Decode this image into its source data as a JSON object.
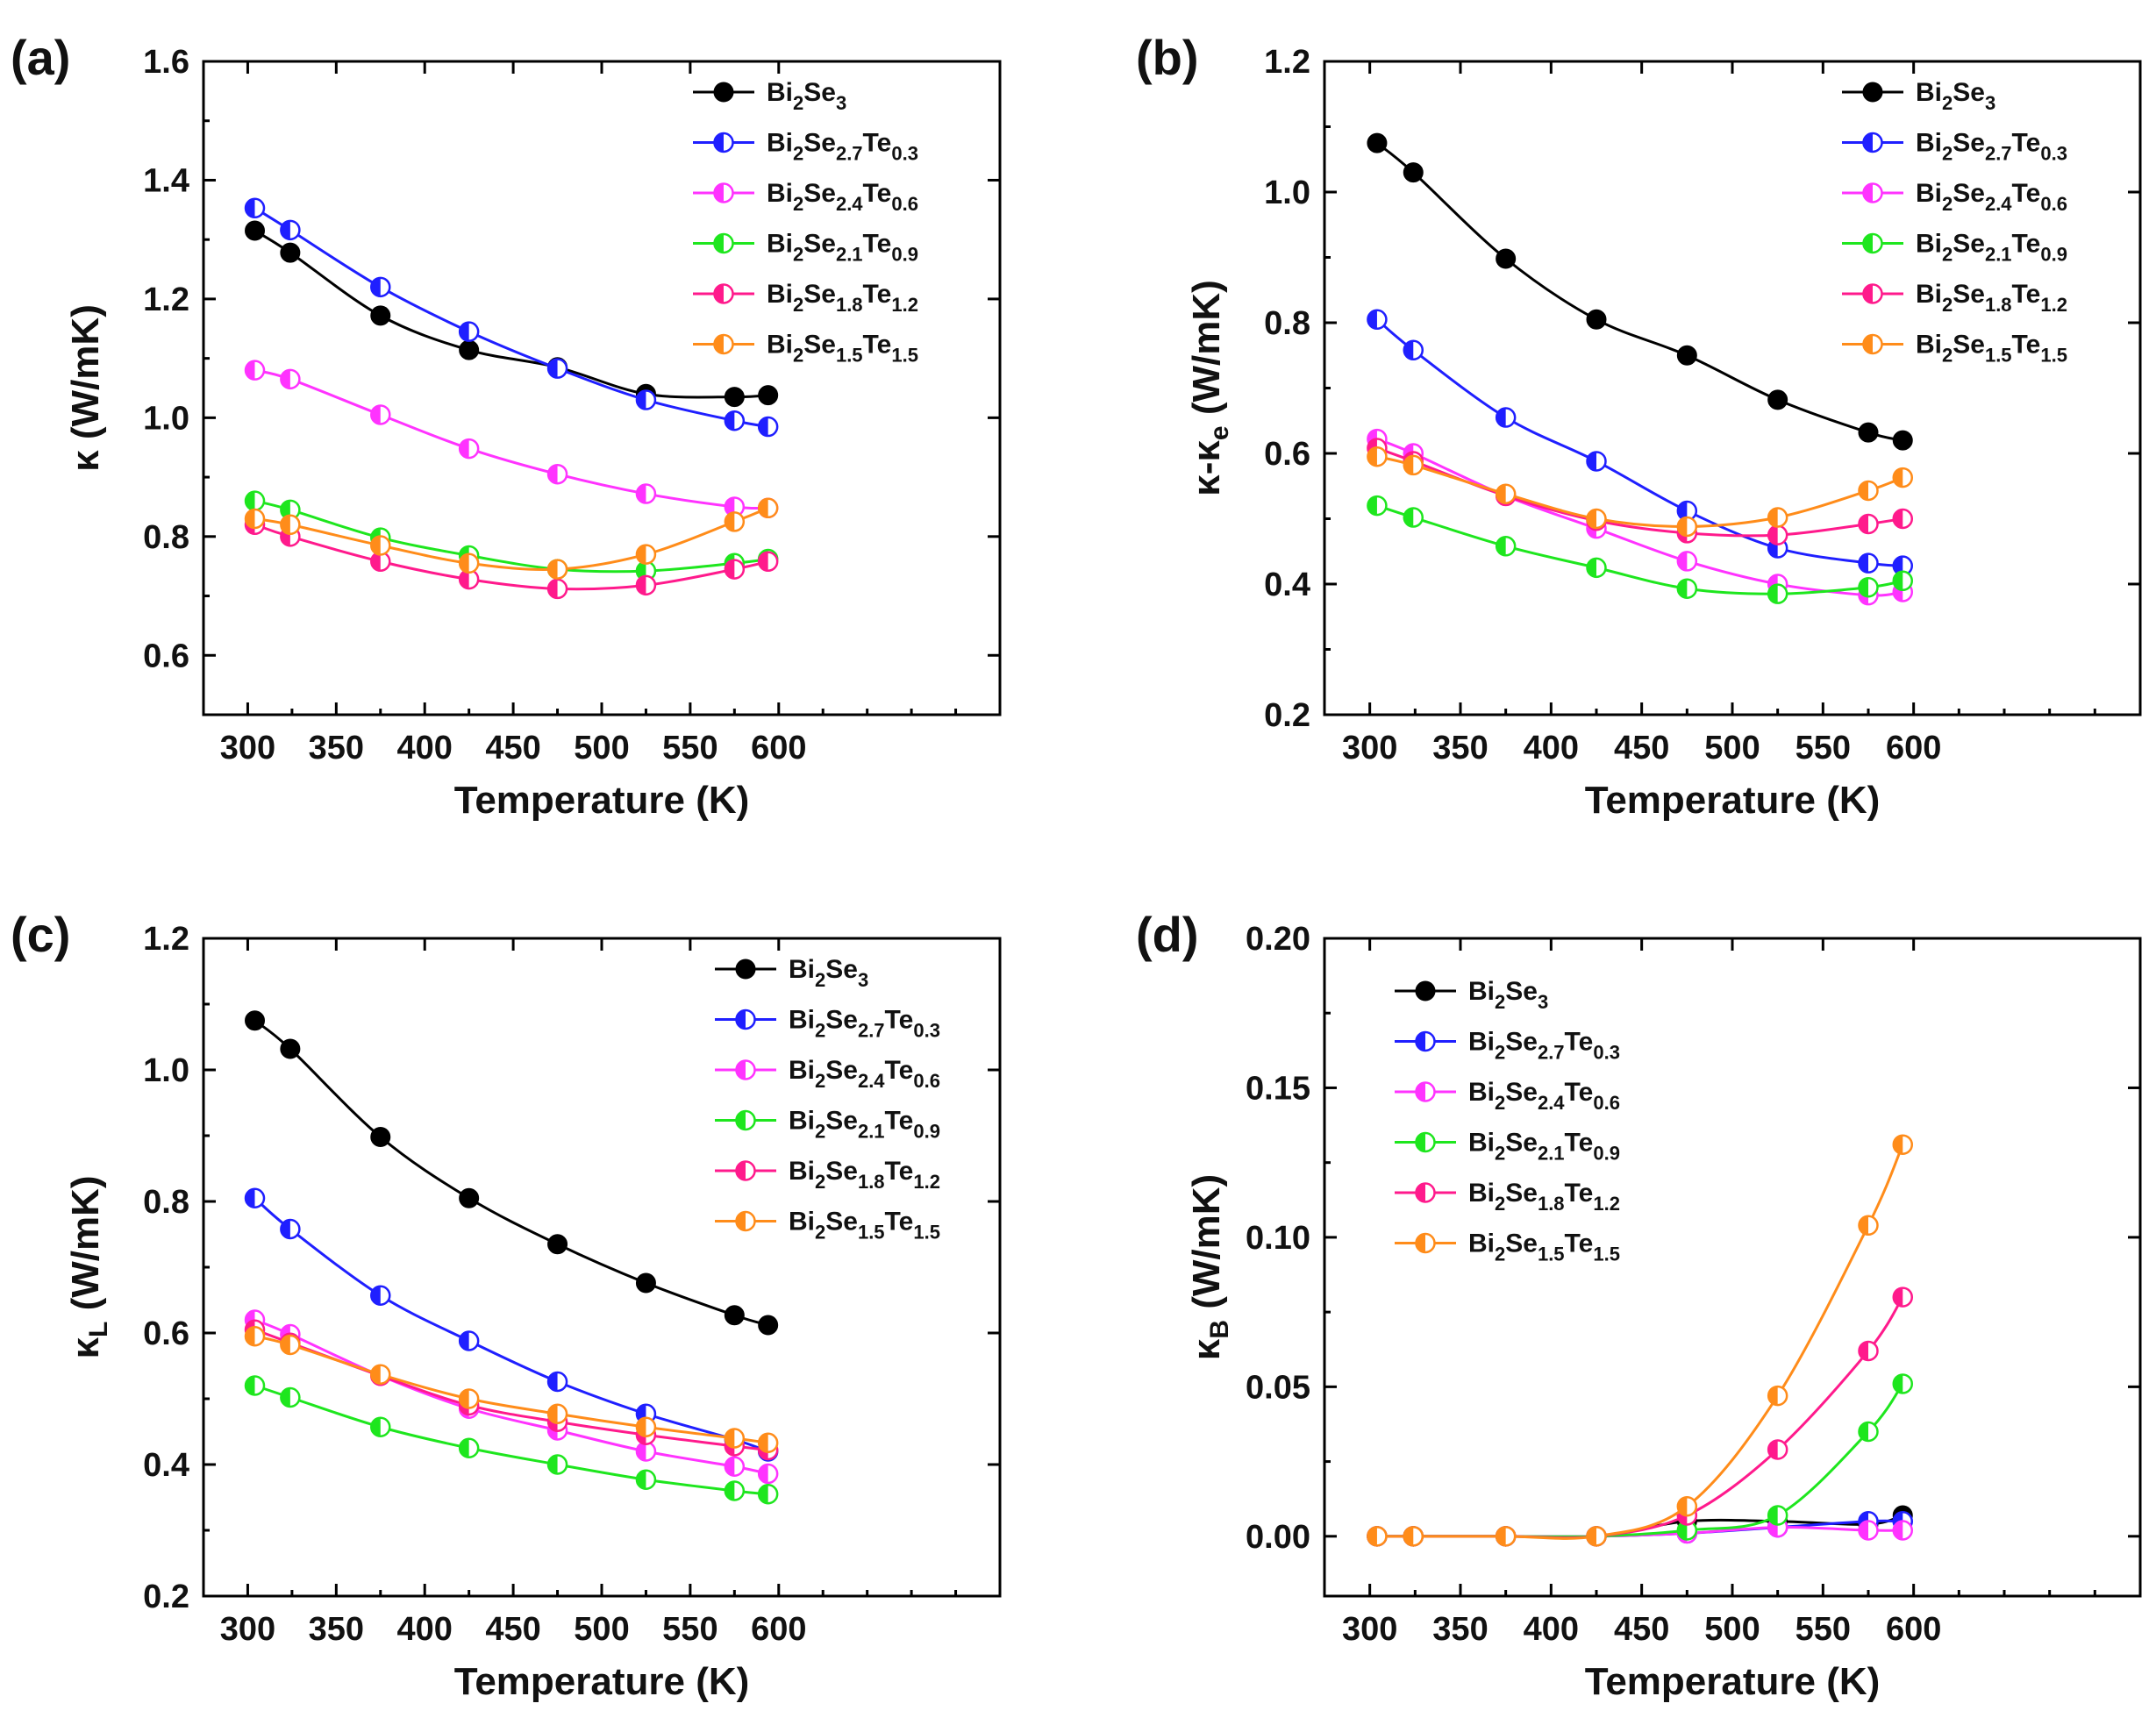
{
  "series_styles": [
    {
      "name_parts": [
        [
          "Bi",
          false
        ],
        [
          "2",
          true
        ],
        [
          "Se",
          false
        ],
        [
          "3",
          true
        ]
      ],
      "color": "#000000",
      "marker": "full"
    },
    {
      "name_parts": [
        [
          "Bi",
          false
        ],
        [
          "2",
          true
        ],
        [
          "Se",
          false
        ],
        [
          "2.7",
          true
        ],
        [
          "Te",
          false
        ],
        [
          "0.3",
          true
        ]
      ],
      "color": "#1f1fff",
      "marker": "half"
    },
    {
      "name_parts": [
        [
          "Bi",
          false
        ],
        [
          "2",
          true
        ],
        [
          "Se",
          false
        ],
        [
          "2.4",
          true
        ],
        [
          "Te",
          false
        ],
        [
          "0.6",
          true
        ]
      ],
      "color": "#ff33ff",
      "marker": "half"
    },
    {
      "name_parts": [
        [
          "Bi",
          false
        ],
        [
          "2",
          true
        ],
        [
          "Se",
          false
        ],
        [
          "2.1",
          true
        ],
        [
          "Te",
          false
        ],
        [
          "0.9",
          true
        ]
      ],
      "color": "#1ee61e",
      "marker": "half"
    },
    {
      "name_parts": [
        [
          "Bi",
          false
        ],
        [
          "2",
          true
        ],
        [
          "Se",
          false
        ],
        [
          "1.8",
          true
        ],
        [
          "Te",
          false
        ],
        [
          "1.2",
          true
        ]
      ],
      "color": "#ff1a8c",
      "marker": "half"
    },
    {
      "name_parts": [
        [
          "Bi",
          false
        ],
        [
          "2",
          true
        ],
        [
          "Se",
          false
        ],
        [
          "1.5",
          true
        ],
        [
          "Te",
          false
        ],
        [
          "1.5",
          true
        ]
      ],
      "color": "#ff8c1a",
      "marker": "half"
    }
  ],
  "chart_data": [
    {
      "panel": "(a)",
      "type": "line",
      "xlabel": "Temperature (K)",
      "ylabel_parts": [
        [
          "κ",
          false
        ],
        [
          " (W/mK)",
          false
        ]
      ],
      "xlim": [
        275,
        725
      ],
      "ylim": [
        0.5,
        1.6
      ],
      "xticks": [
        300,
        350,
        400,
        450,
        500,
        550,
        600
      ],
      "yticks": [
        0.6,
        0.8,
        1.0,
        1.2,
        1.4,
        1.6
      ],
      "ytick_labels": [
        "0.6",
        "0.8",
        "1.0",
        "1.2",
        "1.4",
        "1.6"
      ],
      "x": [
        304,
        324,
        375,
        425,
        475,
        525,
        575,
        594
      ],
      "series": [
        {
          "name": "Bi2Se3",
          "values": [
            1.315,
            1.278,
            1.172,
            1.114,
            1.085,
            1.04,
            1.035,
            1.038
          ]
        },
        {
          "name": "Bi2Se2.7Te0.3",
          "values": [
            1.353,
            1.316,
            1.22,
            1.145,
            1.083,
            1.03,
            0.995,
            0.985
          ]
        },
        {
          "name": "Bi2Se2.4Te0.6",
          "values": [
            1.08,
            1.065,
            1.005,
            0.948,
            0.905,
            0.872,
            0.85,
            0.848
          ]
        },
        {
          "name": "Bi2Se2.1Te0.9",
          "values": [
            0.86,
            0.845,
            0.798,
            0.768,
            0.745,
            0.742,
            0.755,
            0.762
          ]
        },
        {
          "name": "Bi2Se1.8Te1.2",
          "values": [
            0.82,
            0.8,
            0.758,
            0.728,
            0.712,
            0.718,
            0.745,
            0.758
          ]
        },
        {
          "name": "Bi2Se1.5Te1.5",
          "values": [
            0.83,
            0.82,
            0.785,
            0.755,
            0.745,
            0.77,
            0.825,
            0.848
          ]
        }
      ]
    },
    {
      "panel": "(b)",
      "type": "line",
      "xlabel": "Temperature (K)",
      "ylabel_parts": [
        [
          "κ-κ",
          false
        ],
        [
          "e",
          true
        ],
        [
          " (W/mK)",
          false
        ]
      ],
      "xlim": [
        275,
        725
      ],
      "ylim": [
        0.2,
        1.2
      ],
      "xticks": [
        300,
        350,
        400,
        450,
        500,
        550,
        600
      ],
      "yticks": [
        0.2,
        0.4,
        0.6,
        0.8,
        1.0,
        1.2
      ],
      "ytick_labels": [
        "0.2",
        "0.4",
        "0.6",
        "0.8",
        "1.0",
        "1.2"
      ],
      "x": [
        304,
        324,
        375,
        425,
        475,
        525,
        575,
        594
      ],
      "series": [
        {
          "name": "Bi2Se3",
          "values": [
            1.075,
            1.03,
            0.898,
            0.805,
            0.75,
            0.682,
            0.632,
            0.62
          ]
        },
        {
          "name": "Bi2Se2.7Te0.3",
          "values": [
            0.805,
            0.758,
            0.655,
            0.588,
            0.512,
            0.455,
            0.432,
            0.428
          ]
        },
        {
          "name": "Bi2Se2.4Te0.6",
          "values": [
            0.622,
            0.6,
            0.535,
            0.485,
            0.435,
            0.4,
            0.383,
            0.388
          ]
        },
        {
          "name": "Bi2Se2.1Te0.9",
          "values": [
            0.52,
            0.502,
            0.458,
            0.425,
            0.393,
            0.385,
            0.395,
            0.405
          ]
        },
        {
          "name": "Bi2Se1.8Te1.2",
          "values": [
            0.608,
            0.588,
            0.535,
            0.497,
            0.478,
            0.475,
            0.492,
            0.5
          ]
        },
        {
          "name": "Bi2Se1.5Te1.5",
          "values": [
            0.595,
            0.582,
            0.538,
            0.5,
            0.488,
            0.502,
            0.543,
            0.563
          ]
        }
      ]
    },
    {
      "panel": "(c)",
      "type": "line",
      "xlabel": "Temperature (K)",
      "ylabel_parts": [
        [
          "κ",
          false
        ],
        [
          "L",
          true
        ],
        [
          " (W/mK)",
          false
        ]
      ],
      "xlim": [
        275,
        725
      ],
      "ylim": [
        0.2,
        1.2
      ],
      "xticks": [
        300,
        350,
        400,
        450,
        500,
        550,
        600
      ],
      "yticks": [
        0.2,
        0.4,
        0.6,
        0.8,
        1.0,
        1.2
      ],
      "ytick_labels": [
        "0.2",
        "0.4",
        "0.6",
        "0.8",
        "1.0",
        "1.2"
      ],
      "x": [
        304,
        324,
        375,
        425,
        475,
        525,
        575,
        594
      ],
      "series": [
        {
          "name": "Bi2Se3",
          "values": [
            1.075,
            1.032,
            0.898,
            0.805,
            0.735,
            0.676,
            0.627,
            0.612
          ]
        },
        {
          "name": "Bi2Se2.7Te0.3",
          "values": [
            0.805,
            0.758,
            0.657,
            0.588,
            0.526,
            0.477,
            0.438,
            0.42
          ]
        },
        {
          "name": "Bi2Se2.4Te0.6",
          "values": [
            0.62,
            0.598,
            0.535,
            0.485,
            0.452,
            0.42,
            0.397,
            0.386
          ]
        },
        {
          "name": "Bi2Se2.1Te0.9",
          "values": [
            0.52,
            0.502,
            0.457,
            0.425,
            0.4,
            0.377,
            0.36,
            0.355
          ]
        },
        {
          "name": "Bi2Se1.8Te1.2",
          "values": [
            0.605,
            0.585,
            0.535,
            0.49,
            0.465,
            0.445,
            0.428,
            0.422
          ]
        },
        {
          "name": "Bi2Se1.5Te1.5",
          "values": [
            0.595,
            0.582,
            0.537,
            0.5,
            0.477,
            0.457,
            0.44,
            0.433
          ]
        }
      ]
    },
    {
      "panel": "(d)",
      "type": "line",
      "xlabel": "Temperature (K)",
      "ylabel_parts": [
        [
          "κ",
          false
        ],
        [
          "B",
          true
        ],
        [
          " (W/mK)",
          false
        ]
      ],
      "xlim": [
        275,
        725
      ],
      "ylim": [
        -0.02,
        0.2
      ],
      "xticks": [
        300,
        350,
        400,
        450,
        500,
        550,
        600
      ],
      "yticks": [
        0.0,
        0.05,
        0.1,
        0.15,
        0.2
      ],
      "ytick_labels": [
        "0.00",
        "0.05",
        "0.10",
        "0.15",
        "0.20"
      ],
      "x": [
        304,
        324,
        375,
        425,
        475,
        525,
        575,
        594
      ],
      "series": [
        {
          "name": "Bi2Se3",
          "values": [
            0.0,
            0.0,
            0.0,
            0.0,
            0.005,
            0.005,
            0.004,
            0.007
          ]
        },
        {
          "name": "Bi2Se2.7Te0.3",
          "values": [
            0.0,
            0.0,
            0.0,
            0.0,
            0.001,
            0.003,
            0.005,
            0.005
          ]
        },
        {
          "name": "Bi2Se2.4Te0.6",
          "values": [
            0.0,
            0.0,
            0.0,
            0.0,
            0.001,
            0.003,
            0.002,
            0.002
          ]
        },
        {
          "name": "Bi2Se2.1Te0.9",
          "values": [
            0.0,
            0.0,
            0.0,
            0.0,
            0.002,
            0.007,
            0.035,
            0.051
          ]
        },
        {
          "name": "Bi2Se1.8Te1.2",
          "values": [
            0.0,
            0.0,
            0.0,
            0.0,
            0.007,
            0.029,
            0.062,
            0.08
          ]
        },
        {
          "name": "Bi2Se1.5Te1.5",
          "values": [
            0.0,
            0.0,
            0.0,
            0.0,
            0.01,
            0.047,
            0.104,
            0.131
          ]
        }
      ]
    }
  ]
}
